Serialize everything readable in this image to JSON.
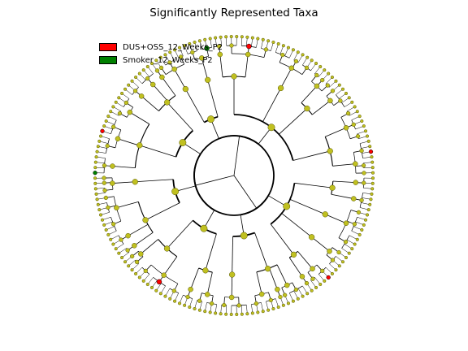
{
  "title": "Significantly Represented Taxa",
  "legend": [
    {
      "label": "DUS+OSS_12_Weeks_P2",
      "color": "#ff0000"
    },
    {
      "label": "Smoker_12_Weeks_P2",
      "color": "#008000"
    }
  ],
  "colors": {
    "node_fill": "#c0c020",
    "node_stroke": "#555500",
    "edge": "#000000"
  },
  "chart_data": {
    "type": "cladogram",
    "levels": 6,
    "highlighted": [
      {
        "group": "DUS+OSS_12_Weeks_P2",
        "count": 5
      },
      {
        "group": "Smoker_12_Weeks_P2",
        "count": 2
      }
    ]
  }
}
